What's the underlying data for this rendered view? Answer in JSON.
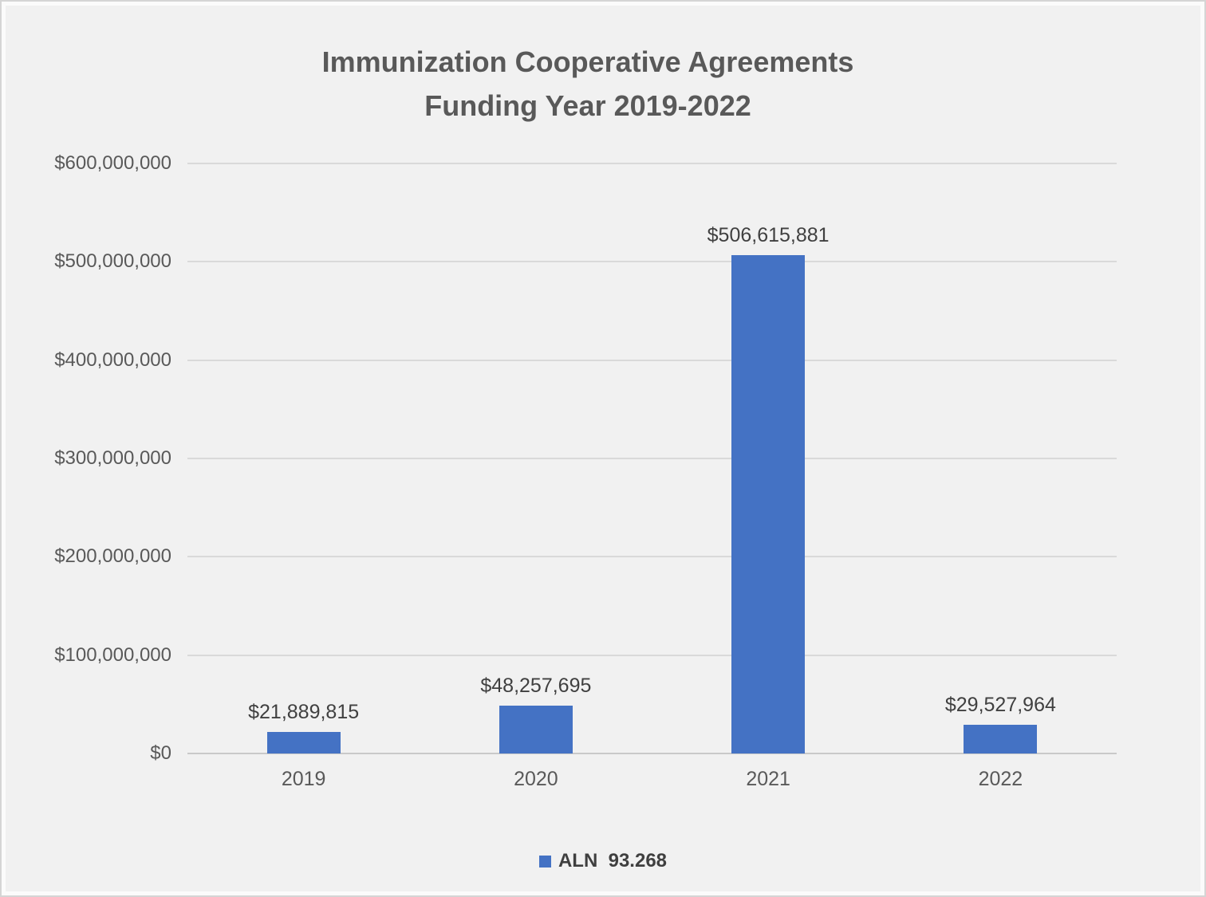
{
  "chart_data": {
    "type": "bar",
    "title": "Immunization Cooperative Agreements",
    "subtitle": "Funding Year 2019-2022",
    "categories": [
      "2019",
      "2020",
      "2021",
      "2022"
    ],
    "values": [
      21889815,
      48257695,
      506615881,
      29527964
    ],
    "value_labels": [
      "$21,889,815",
      "$48,257,695",
      "$506,615,881",
      "$29,527,964"
    ],
    "xlabel": "",
    "ylabel": "",
    "ylim": [
      0,
      600000000
    ],
    "grid": true,
    "y_ticks": [
      {
        "value": 0,
        "label": "$0"
      },
      {
        "value": 100000000,
        "label": "$100,000,000"
      },
      {
        "value": 200000000,
        "label": "$200,000,000"
      },
      {
        "value": 300000000,
        "label": "$300,000,000"
      },
      {
        "value": 400000000,
        "label": "$400,000,000"
      },
      {
        "value": 500000000,
        "label": "$500,000,000"
      },
      {
        "value": 600000000,
        "label": "$600,000,000"
      }
    ],
    "legend": {
      "label": "ALN  93.268",
      "position": "bottom",
      "marker_color": "#4472C4"
    },
    "colors": {
      "bar": "#4472C4",
      "background": "#F1F1F1",
      "gridline": "#D9D9D9",
      "axis_text": "#595959",
      "data_label_text": "#404040"
    }
  }
}
